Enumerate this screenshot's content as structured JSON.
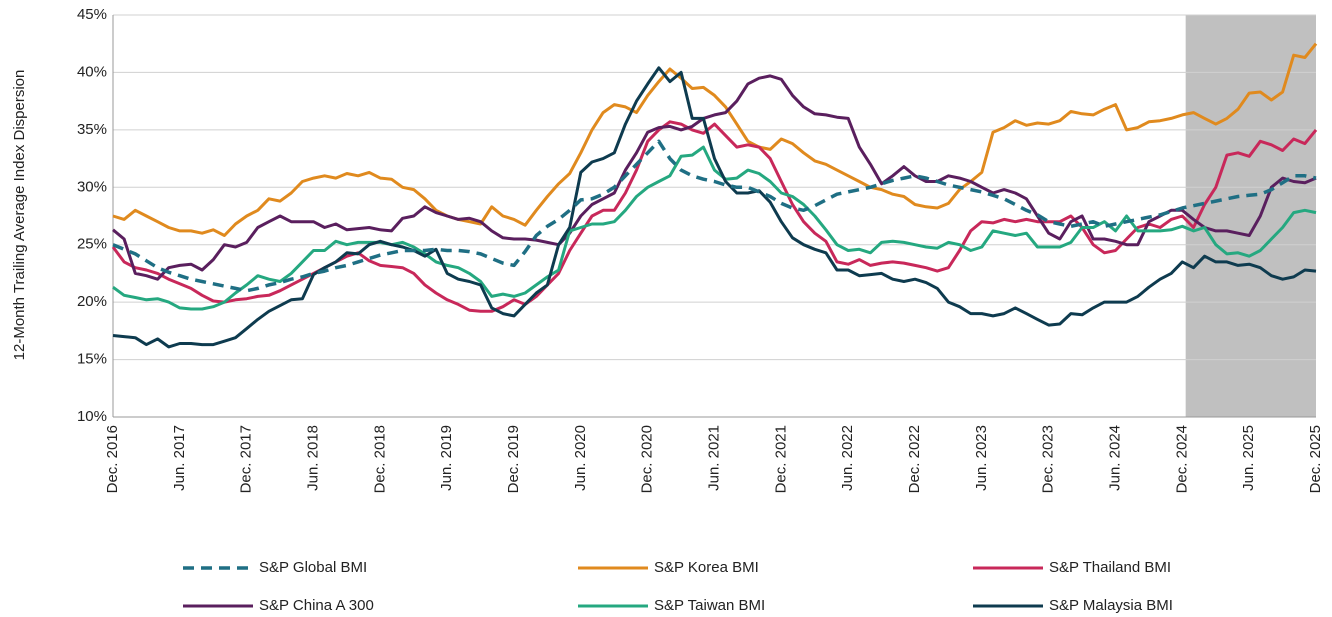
{
  "chart_data": {
    "type": "line",
    "y_label": "12-Month Trailing Average Index Dispersion",
    "categories": [
      "Dec. 2016",
      null,
      null,
      null,
      null,
      null,
      "Jun. 2017",
      null,
      null,
      null,
      null,
      null,
      "Dec. 2017",
      null,
      null,
      null,
      null,
      null,
      "Jun. 2018",
      null,
      null,
      null,
      null,
      null,
      "Dec. 2018",
      null,
      null,
      null,
      null,
      null,
      "Jun. 2019",
      null,
      null,
      null,
      null,
      null,
      "Dec. 2019",
      null,
      null,
      null,
      null,
      null,
      "Jun. 2020",
      null,
      null,
      null,
      null,
      null,
      "Dec. 2020",
      null,
      null,
      null,
      null,
      null,
      "Jun. 2021",
      null,
      null,
      null,
      null,
      null,
      "Dec. 2021",
      null,
      null,
      null,
      null,
      null,
      "Jun. 2022",
      null,
      null,
      null,
      null,
      null,
      "Dec. 2022",
      null,
      null,
      null,
      null,
      null,
      "Jun. 2023",
      null,
      null,
      null,
      null,
      null,
      "Dec. 2023",
      null,
      null,
      null,
      null,
      null,
      "Jun. 2024",
      null,
      null,
      null,
      null,
      null,
      "Dec. 2024",
      null,
      null,
      null,
      null,
      null,
      "Jun. 2025",
      null,
      null,
      null,
      null,
      null,
      "Dec. 2025"
    ],
    "ylim": [
      10,
      45
    ],
    "yticks": [
      {
        "value": 10,
        "label": "10%"
      },
      {
        "value": 15,
        "label": "15%"
      },
      {
        "value": 20,
        "label": "20%"
      },
      {
        "value": 25,
        "label": "25%"
      },
      {
        "value": 30,
        "label": "30%"
      },
      {
        "value": 35,
        "label": "35%"
      },
      {
        "value": 40,
        "label": "40%"
      },
      {
        "value": 45,
        "label": "45%"
      }
    ],
    "grid": true,
    "highlight": {
      "start": 96.3,
      "end": 108,
      "color": "#c0c0c0"
    },
    "series": [
      {
        "name": "S&P Global BMI",
        "color": "#1f6f84",
        "dash": true,
        "values": [
          25,
          24.6,
          24.2,
          23.6,
          23.0,
          22.6,
          22.3,
          22.0,
          21.8,
          21.6,
          21.4,
          21.2,
          21.0,
          21.2,
          21.5,
          21.7,
          22.0,
          22.2,
          22.5,
          22.7,
          23.0,
          23.2,
          23.5,
          23.8,
          24.1,
          24.3,
          24.5,
          24.5,
          24.5,
          24.6,
          24.5,
          24.5,
          24.4,
          24.2,
          23.8,
          23.4,
          23.2,
          24.4,
          25.8,
          26.6,
          27.2,
          28.0,
          28.9,
          29.0,
          29.4,
          30.0,
          31.0,
          32.0,
          33.0,
          34.0,
          32.5,
          31.5,
          31.0,
          30.7,
          30.5,
          30.2,
          30.0,
          30.0,
          29.6,
          29.2,
          28.6,
          28.2,
          28.0,
          28.4,
          28.9,
          29.4,
          29.6,
          29.8,
          30.0,
          30.3,
          30.6,
          30.8,
          31.0,
          30.8,
          30.5,
          30.2,
          30.0,
          29.8,
          29.6,
          29.3,
          29.0,
          28.5,
          28.0,
          27.6,
          27.0,
          26.8,
          26.6,
          26.8,
          27.0,
          26.6,
          26.8,
          27.0,
          27.2,
          27.4,
          27.6,
          27.9,
          28.2,
          28.4,
          28.6,
          28.8,
          29.0,
          29.2,
          29.3,
          29.4,
          29.8,
          30.4,
          31.0,
          31.0,
          30.8
        ]
      },
      {
        "name": "S&P Korea BMI",
        "color": "#e08a1e",
        "values": [
          27.5,
          27.2,
          28.0,
          27.5,
          27.0,
          26.5,
          26.2,
          26.2,
          26.0,
          26.3,
          25.8,
          26.8,
          27.5,
          28.0,
          29.0,
          28.8,
          29.5,
          30.5,
          30.8,
          31.0,
          30.8,
          31.2,
          31.0,
          31.3,
          30.8,
          30.7,
          30.0,
          29.8,
          29.0,
          28.0,
          27.5,
          27.2,
          27.0,
          26.8,
          28.3,
          27.5,
          27.2,
          26.7,
          28.0,
          29.2,
          30.3,
          31.2,
          33.0,
          35.0,
          36.5,
          37.2,
          37.0,
          36.5,
          38.0,
          39.2,
          40.3,
          39.5,
          38.6,
          38.7,
          38.0,
          37.0,
          35.5,
          34.0,
          33.5,
          33.3,
          34.2,
          33.8,
          33.0,
          32.3,
          32.0,
          31.5,
          31.0,
          30.5,
          30.0,
          29.8,
          29.4,
          29.2,
          28.5,
          28.3,
          28.2,
          28.6,
          29.8,
          30.5,
          31.3,
          34.8,
          35.2,
          35.8,
          35.4,
          35.6,
          35.5,
          35.8,
          36.6,
          36.4,
          36.3,
          36.8,
          37.2,
          35.0,
          35.2,
          35.7,
          35.8,
          36.0,
          36.3,
          36.5,
          36.0,
          35.5,
          36.0,
          36.8,
          38.2,
          38.3,
          37.6,
          38.3,
          41.5,
          41.3,
          42.5
        ]
      },
      {
        "name": "S&P Thailand BMI",
        "color": "#c8285a",
        "values": [
          24.8,
          23.5,
          23.0,
          22.8,
          22.5,
          22.0,
          21.6,
          21.2,
          20.6,
          20.1,
          20.0,
          20.2,
          20.3,
          20.5,
          20.6,
          21.0,
          21.5,
          22.0,
          22.5,
          23.0,
          23.5,
          24.0,
          24.3,
          23.6,
          23.2,
          23.1,
          23.0,
          22.5,
          21.5,
          20.8,
          20.2,
          19.8,
          19.3,
          19.2,
          19.2,
          19.6,
          20.2,
          19.8,
          20.5,
          21.5,
          22.5,
          24.5,
          26.0,
          27.5,
          28.0,
          28.0,
          29.5,
          31.5,
          34.0,
          35.0,
          35.7,
          35.5,
          35.0,
          34.7,
          35.5,
          34.5,
          33.5,
          33.7,
          33.5,
          32.5,
          30.5,
          28.5,
          27.0,
          26.0,
          25.3,
          23.5,
          23.3,
          23.7,
          23.2,
          23.4,
          23.5,
          23.4,
          23.2,
          23.0,
          22.7,
          23.0,
          24.5,
          26.2,
          27.0,
          26.9,
          27.2,
          27.0,
          27.2,
          27.0,
          27.0,
          27.0,
          27.5,
          26.5,
          25.0,
          24.3,
          24.5,
          25.5,
          26.5,
          26.8,
          26.5,
          27.2,
          27.5,
          26.5,
          28.5,
          30.0,
          32.8,
          33.0,
          32.7,
          34.0,
          33.7,
          33.2,
          34.2,
          33.8,
          35.0
        ]
      },
      {
        "name": "S&P China A 300",
        "color": "#5a1f5e",
        "values": [
          26.3,
          25.5,
          22.5,
          22.3,
          22.0,
          23.0,
          23.2,
          23.3,
          22.8,
          23.7,
          25.0,
          24.8,
          25.2,
          26.5,
          27.0,
          27.5,
          27.0,
          27.0,
          27.0,
          26.5,
          26.8,
          26.3,
          26.4,
          26.5,
          26.3,
          26.2,
          27.3,
          27.5,
          28.3,
          27.8,
          27.5,
          27.2,
          27.3,
          27.0,
          26.2,
          25.6,
          25.5,
          25.5,
          25.4,
          25.2,
          25.0,
          26.0,
          27.5,
          28.5,
          29.0,
          29.5,
          31.5,
          33.0,
          34.8,
          35.2,
          35.3,
          35.0,
          35.3,
          36.0,
          36.3,
          36.5,
          37.5,
          39.0,
          39.5,
          39.7,
          39.4,
          38.0,
          37.0,
          36.4,
          36.3,
          36.1,
          36.0,
          33.5,
          32.0,
          30.3,
          31.0,
          31.8,
          31.0,
          30.5,
          30.5,
          31.0,
          30.8,
          30.5,
          30.0,
          29.5,
          29.8,
          29.5,
          29.0,
          27.5,
          26.0,
          25.5,
          27.0,
          27.5,
          25.5,
          25.5,
          25.3,
          25.0,
          25.0,
          27.0,
          27.5,
          28.0,
          28.0,
          27.2,
          26.5,
          26.2,
          26.2,
          26.0,
          25.8,
          27.5,
          30.0,
          30.8,
          30.5,
          30.4,
          30.8
        ]
      },
      {
        "name": "S&P Taiwan BMI",
        "color": "#25a880",
        "values": [
          21.3,
          20.6,
          20.4,
          20.2,
          20.3,
          20.0,
          19.5,
          19.4,
          19.4,
          19.6,
          20.0,
          20.8,
          21.5,
          22.3,
          22.0,
          21.8,
          22.5,
          23.5,
          24.5,
          24.5,
          25.3,
          25.0,
          25.2,
          25.2,
          25.2,
          25.0,
          25.2,
          24.8,
          24.2,
          23.5,
          23.2,
          23.0,
          22.5,
          21.8,
          20.5,
          20.7,
          20.5,
          20.8,
          21.5,
          22.2,
          22.8,
          26.2,
          26.5,
          26.8,
          26.8,
          27.0,
          28.0,
          29.2,
          30.0,
          30.5,
          31.0,
          32.7,
          32.8,
          33.5,
          31.5,
          30.7,
          30.8,
          31.5,
          31.2,
          30.5,
          29.5,
          29.2,
          28.5,
          27.5,
          26.3,
          25.0,
          24.5,
          24.6,
          24.3,
          25.2,
          25.3,
          25.2,
          25.0,
          24.8,
          24.7,
          25.2,
          25.0,
          24.5,
          24.8,
          26.2,
          26.0,
          25.8,
          26.0,
          24.8,
          24.8,
          24.8,
          25.2,
          26.5,
          26.5,
          27.0,
          26.2,
          27.5,
          26.2,
          26.2,
          26.2,
          26.3,
          26.6,
          26.2,
          26.5,
          25.0,
          24.2,
          24.3,
          24.0,
          24.5,
          25.5,
          26.5,
          27.8,
          28.0,
          27.8
        ]
      },
      {
        "name": "S&P Malaysia BMI",
        "color": "#0e3b4f",
        "values": [
          17.1,
          17.0,
          16.9,
          16.3,
          16.8,
          16.1,
          16.4,
          16.4,
          16.3,
          16.3,
          16.6,
          16.9,
          17.7,
          18.5,
          19.2,
          19.7,
          20.2,
          20.3,
          22.4,
          23.0,
          23.5,
          24.3,
          24.2,
          25.0,
          25.3,
          25.0,
          24.8,
          24.5,
          24.0,
          24.6,
          22.5,
          22.0,
          21.8,
          21.5,
          19.5,
          19.0,
          18.8,
          19.8,
          20.8,
          21.5,
          25.0,
          26.5,
          31.3,
          32.2,
          32.5,
          33.0,
          35.5,
          37.5,
          39.0,
          40.4,
          39.2,
          40.0,
          36.0,
          36.0,
          32.5,
          30.5,
          29.5,
          29.5,
          29.7,
          28.7,
          27.0,
          25.6,
          25.0,
          24.6,
          24.3,
          22.8,
          22.8,
          22.3,
          22.4,
          22.5,
          22.0,
          21.8,
          22.0,
          21.7,
          21.2,
          20.0,
          19.6,
          19.0,
          19.0,
          18.8,
          19.0,
          19.5,
          19.0,
          18.5,
          18.0,
          18.1,
          19.0,
          18.9,
          19.5,
          20.0,
          20.0,
          20.0,
          20.5,
          21.3,
          22.0,
          22.5,
          23.5,
          23.0,
          24.0,
          23.5,
          23.5,
          23.2,
          23.3,
          23.0,
          22.3,
          22.0,
          22.2,
          22.8,
          22.7
        ]
      }
    ]
  }
}
